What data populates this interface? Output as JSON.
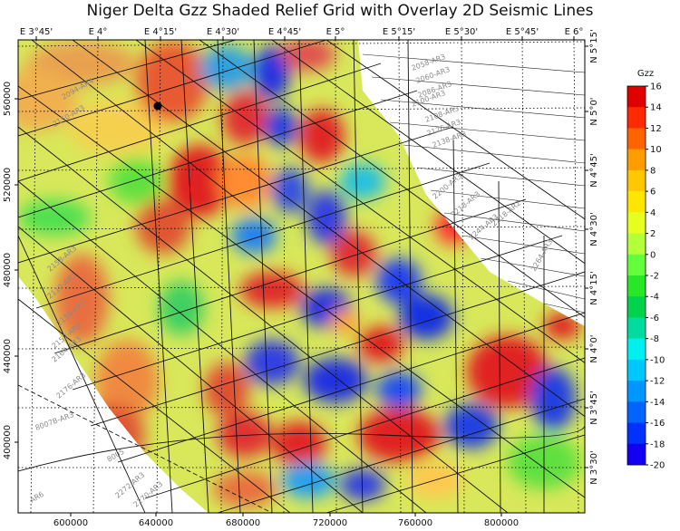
{
  "title": "Niger Delta Gzz Shaded Relief Grid with Overlay 2D Seismic Lines",
  "map": {
    "top_axis": [
      "E 3°45'",
      "E 4°",
      "E 4°15'",
      "E 4°30'",
      "E 4°45'",
      "E 5°",
      "E 5°15'",
      "E 5°30'",
      "E 5°45'",
      "E 6°"
    ],
    "right_axis": [
      "N 5°15'",
      "N 5°0'",
      "N 4°45'",
      "N 4°30'",
      "N 4°15'",
      "N 4°0'",
      "N 3°45'",
      "N 3°30'"
    ],
    "bottom_axis": [
      "600000",
      "640000",
      "680000",
      "720000",
      "760000",
      "800000"
    ],
    "left_axis": [
      "560000",
      "520000",
      "480000",
      "440000",
      "400000"
    ],
    "line_labels": [
      "2058-AR3",
      "2060-AR3",
      "2086-AR3",
      "2100-AR3",
      "2108-AR3",
      "2126-AR3",
      "2138-AR3",
      "2150-AR3",
      "2158-AR3",
      "2164-AR3",
      "2176-AR3",
      "2200-AR3",
      "2218-AR3",
      "2244-AR3",
      "2264-AR3",
      "8007B-AR3",
      "8005",
      "2218-AR2",
      "2272-AR3",
      "2270-AR3",
      "2094-AR4",
      "2112-AR3",
      "2136-AR3",
      "2152-AR3",
      "AR6"
    ],
    "colors": {
      "grid": "#000000",
      "seismic": "#111111"
    }
  },
  "colorbar": {
    "label": "Gzz",
    "ticks": [
      "16",
      "14",
      "12",
      "10",
      "8",
      "6",
      "4",
      "2",
      "0",
      "-2",
      "-4",
      "-6",
      "-8",
      "-10",
      "-12",
      "-14",
      "-16",
      "-18",
      "-20"
    ],
    "colors": [
      "#e00000",
      "#ff2a00",
      "#ff6400",
      "#ff9c00",
      "#ffc800",
      "#ffe600",
      "#e6ff1e",
      "#b4ff3c",
      "#64ff3c",
      "#28e628",
      "#00d24b",
      "#00dca0",
      "#00f0f0",
      "#00c8ff",
      "#0096ff",
      "#0064ff",
      "#0032ff",
      "#1400f0"
    ]
  }
}
